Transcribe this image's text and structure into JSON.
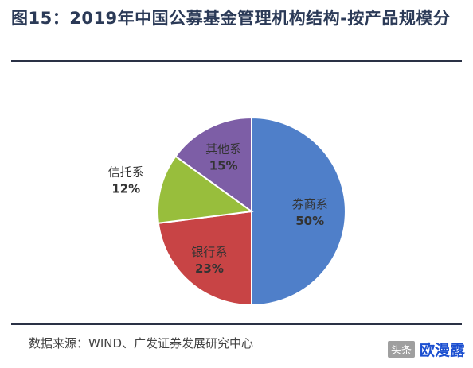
{
  "figure": {
    "title": "图15：2019年中国公募基金管理机构结构-按产品规模分",
    "source": "数据来源：WIND、广发证券发展研究中心"
  },
  "watermark": {
    "small": "头条",
    "big": "欧漫露"
  },
  "chart_data": {
    "type": "pie",
    "title": "",
    "slices": [
      {
        "label": "券商系",
        "value": 50,
        "display": "50%",
        "color": "#4f7fc9"
      },
      {
        "label": "银行系",
        "value": 23,
        "display": "23%",
        "color": "#c84445"
      },
      {
        "label": "信托系",
        "value": 12,
        "display": "12%",
        "color": "#98be3c"
      },
      {
        "label": "其他系",
        "value": 15,
        "display": "15%",
        "color": "#7d5ea6"
      }
    ]
  }
}
